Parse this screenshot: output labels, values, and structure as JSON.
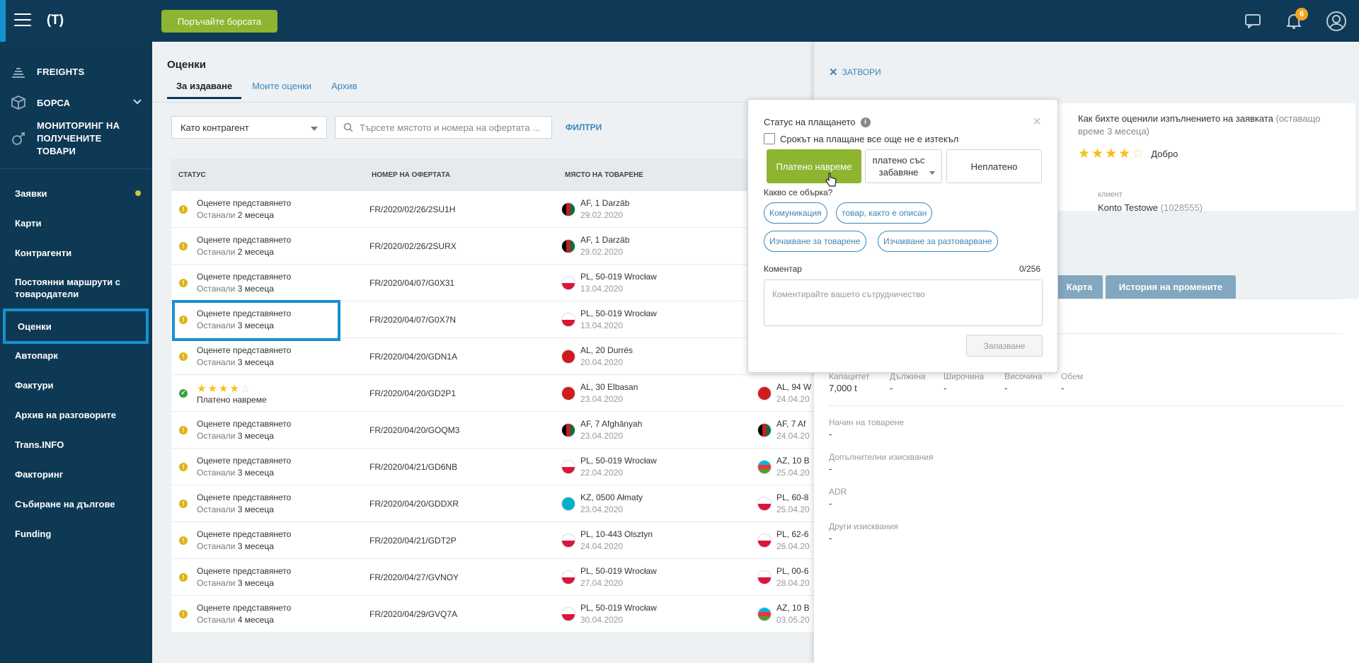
{
  "header": {
    "exchange_button": "Поръчайте борсата",
    "notifications_count": "6"
  },
  "sidebar": {
    "main": [
      {
        "label": "FREIGHTS",
        "icon": "freights-icon"
      },
      {
        "label": "БОРСА",
        "icon": "box-icon"
      },
      {
        "label": "МОНИТОРИНГ НА ПОЛУЧЕНИТЕ ТОВАРИ",
        "icon": "satellite-icon"
      }
    ],
    "items": [
      {
        "label": "Заявки"
      },
      {
        "label": "Карти"
      },
      {
        "label": "Контрагенти"
      },
      {
        "label": "Постоянни маршрути с товародатели"
      },
      {
        "label": "Оценки"
      },
      {
        "label": "Автопарк"
      },
      {
        "label": "Фактури"
      },
      {
        "label": "Архив на разговорите"
      },
      {
        "label": "Trans.INFO"
      },
      {
        "label": "Факторинг"
      },
      {
        "label": "Събиране на дългове"
      },
      {
        "label": "Funding"
      }
    ]
  },
  "main": {
    "title": "Оценки",
    "tabs": [
      {
        "label": "За издаване"
      },
      {
        "label": "Моите оценки"
      },
      {
        "label": "Архив"
      }
    ],
    "select_value": "Като контрагент",
    "search_placeholder": "Търсете мястото и номера на офертата ...",
    "filters": "ФИЛТРИ",
    "columns": [
      "СТАТУС",
      "НОМЕР НА ОФЕРТАТА",
      "МЯСТО НА ТОВАРЕНЕ"
    ],
    "rows": [
      {
        "status": "Оценете представянето",
        "left_prefix": "Останали",
        "left": "2 месеца",
        "offer": "FR/2020/02/26/2SU1H",
        "load": "AF, 1 Darzāb",
        "load_date": "29.02.2020",
        "unload": "",
        "unload_date": ""
      },
      {
        "status": "Оценете представянето",
        "left_prefix": "Останали",
        "left": "2 месеца",
        "offer": "FR/2020/02/26/2SURX",
        "load": "AF, 1 Darzāb",
        "load_date": "29.02.2020",
        "unload": "",
        "unload_date": ""
      },
      {
        "status": "Оценете представянето",
        "left_prefix": "Останали",
        "left": "3 месеца",
        "offer": "FR/2020/04/07/G0X31",
        "load": "PL, 50-019 Wrocław",
        "load_date": "13.04.2020",
        "unload": "",
        "unload_date": ""
      },
      {
        "status": "Оценете представянето",
        "left_prefix": "Останали",
        "left": "3 месеца",
        "offer": "FR/2020/04/07/G0X7N",
        "load": "PL, 50-019 Wrocław",
        "load_date": "13.04.2020",
        "unload": "",
        "unload_date": ""
      },
      {
        "status": "Оценете представянето",
        "left_prefix": "Останали",
        "left": "3 месеца",
        "offer": "FR/2020/04/20/GDN1A",
        "load": "AL, 20 Durrës",
        "load_date": "20.04.2020",
        "unload": "",
        "unload_date": ""
      },
      {
        "status": "Платено навреме",
        "rating": 4,
        "offer": "FR/2020/04/20/GD2P1",
        "load": "AL, 30 Elbasan",
        "load_date": "23.04.2020",
        "unload": "AL, 94 W",
        "unload_date": "24.04.20"
      },
      {
        "status": "Оценете представянето",
        "left_prefix": "Останали",
        "left": "3 месеца",
        "offer": "FR/2020/04/20/GOQM3",
        "load": "AF, 7 Afghānyah",
        "load_date": "23.04.2020",
        "unload": "AF, 7 Af",
        "unload_date": "24.04.20"
      },
      {
        "status": "Оценете представянето",
        "left_prefix": "Останали",
        "left": "3 месеца",
        "offer": "FR/2020/04/21/GD6NB",
        "load": "PL, 50-019 Wrocław",
        "load_date": "22.04.2020",
        "unload": "AZ, 10 B",
        "unload_date": "25.04.20"
      },
      {
        "status": "Оценете представянето",
        "left_prefix": "Останали",
        "left": "3 месеца",
        "offer": "FR/2020/04/20/GDDXR",
        "load": "KZ, 0500 Ałmaty",
        "load_date": "23.04.2020",
        "unload": "PL, 60-8",
        "unload_date": "25.04.20"
      },
      {
        "status": "Оценете представянето",
        "left_prefix": "Останали",
        "left": "3 месеца",
        "offer": "FR/2020/04/21/GDT2P",
        "load": "PL, 10-443 Olsztyn",
        "load_date": "24.04.2020",
        "unload": "PL, 62-6",
        "unload_date": "26.04.20"
      },
      {
        "status": "Оценете представянето",
        "left_prefix": "Останали",
        "left": "3 месеца",
        "offer": "FR/2020/04/27/GVNOY",
        "load": "PL, 50-019 Wrocław",
        "load_date": "27.04.2020",
        "unload": "PL, 00-6",
        "unload_date": "28.04.20"
      },
      {
        "status": "Оценете представянето",
        "left_prefix": "Останали",
        "left": "4 месеца",
        "offer": "FR/2020/04/29/GVQ7A",
        "load": "PL, 50-019 Wrocław",
        "load_date": "30.04.2020",
        "unload": "AZ, 10 B",
        "unload_date": "03.05.20"
      }
    ]
  },
  "panel": {
    "close": "ЗАТВОРИ",
    "rate_question": "Как бихте оценили изпълнението на заявката",
    "rate_remaining": "(оставащо време 3 месеца)",
    "rating": 4,
    "rating_label": "Добро",
    "client_label": "клиент",
    "client_name": "Konto Testowe",
    "client_id": "(1028555)",
    "tabs": [
      "Карта",
      "История на промените"
    ],
    "dims": [
      {
        "label": "Капацитет",
        "value": "7,000 t"
      },
      {
        "label": "Дължина",
        "value": "-"
      },
      {
        "label": "Широчина",
        "value": "-"
      },
      {
        "label": "Височина",
        "value": "-"
      },
      {
        "label": "Обем",
        "value": "-"
      }
    ],
    "fields": [
      {
        "label": "Начин на товарене",
        "value": "-"
      },
      {
        "label": "Допълнителни изисквания",
        "value": "-"
      },
      {
        "label": "ADR",
        "value": "-"
      },
      {
        "label": "Други изисквания",
        "value": "-"
      }
    ]
  },
  "popup": {
    "title": "Статус на плащането",
    "checkbox": "Срокът на плащане все още не е изтекъл",
    "btn_on_time": "Платено навреме",
    "btn_delayed": "платено със забавяне",
    "btn_unpaid": "Неплатено",
    "question": "Какво се обърка?",
    "chips": [
      "Комуникация",
      "товар, както е описан",
      "Изчакване за товарене",
      "Изчакване за разтоварване"
    ],
    "comment_label": "Коментар",
    "counter": "0/256",
    "comment_placeholder": "Коментирайте вашето сътрудничество",
    "save": "Запазване"
  },
  "colors": {
    "navy": "#0e3955",
    "green": "#8db531",
    "blue_accent": "#1790cf",
    "link": "#3a87b8"
  }
}
